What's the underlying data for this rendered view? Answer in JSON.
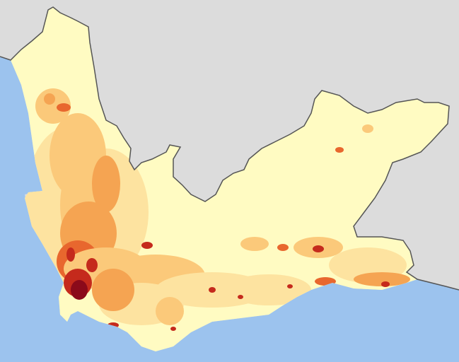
{
  "map": {
    "colors": {
      "neighbouring_land": "#dcdcdc",
      "ocean": "#9cc3ee",
      "border": "#555555",
      "density_classes": [
        "#fffbc2",
        "#fde3a0",
        "#fbc97a",
        "#f5a452",
        "#e8672e",
        "#c52a1c",
        "#8b0a1a"
      ]
    }
  }
}
